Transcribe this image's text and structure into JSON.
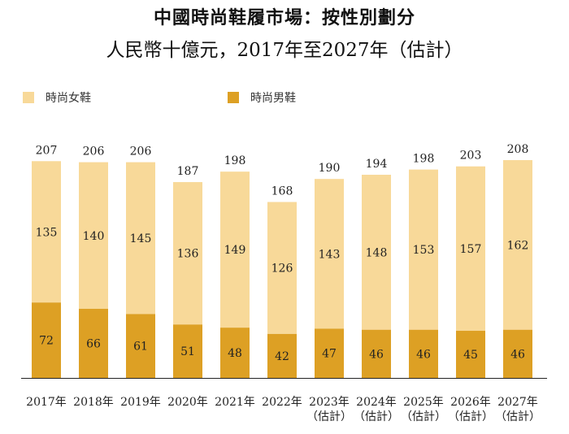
{
  "title": "中國時尚鞋履市場：按性別劃分",
  "subtitle": "人民幣十億元，2017年至2027年（估計）",
  "colors": {
    "female": "#F8D999",
    "male": "#DDA024",
    "axis": "#222222"
  },
  "chart_data": {
    "type": "bar",
    "stacked": true,
    "categories": [
      "2017年",
      "2018年",
      "2019年",
      "2020年",
      "2021年",
      "2022年",
      "2023年",
      "2024年",
      "2025年",
      "2026年",
      "2027年"
    ],
    "category_sublabels": [
      "",
      "",
      "",
      "",
      "",
      "",
      "（估計）",
      "（估計）",
      "（估計）",
      "（估計）",
      "（估計）"
    ],
    "series": [
      {
        "name": "時尚男鞋",
        "values": [
          72,
          66,
          61,
          51,
          48,
          42,
          47,
          46,
          46,
          45,
          46
        ]
      },
      {
        "name": "時尚女鞋",
        "values": [
          135,
          140,
          145,
          136,
          149,
          126,
          143,
          148,
          153,
          157,
          162
        ]
      }
    ],
    "totals": [
      207,
      206,
      206,
      187,
      198,
      168,
      190,
      194,
      198,
      203,
      208
    ],
    "legend": [
      "時尚女鞋",
      "時尚男鞋"
    ],
    "legend_position": "top-left",
    "ylim": [
      0,
      220
    ],
    "grid": false
  }
}
